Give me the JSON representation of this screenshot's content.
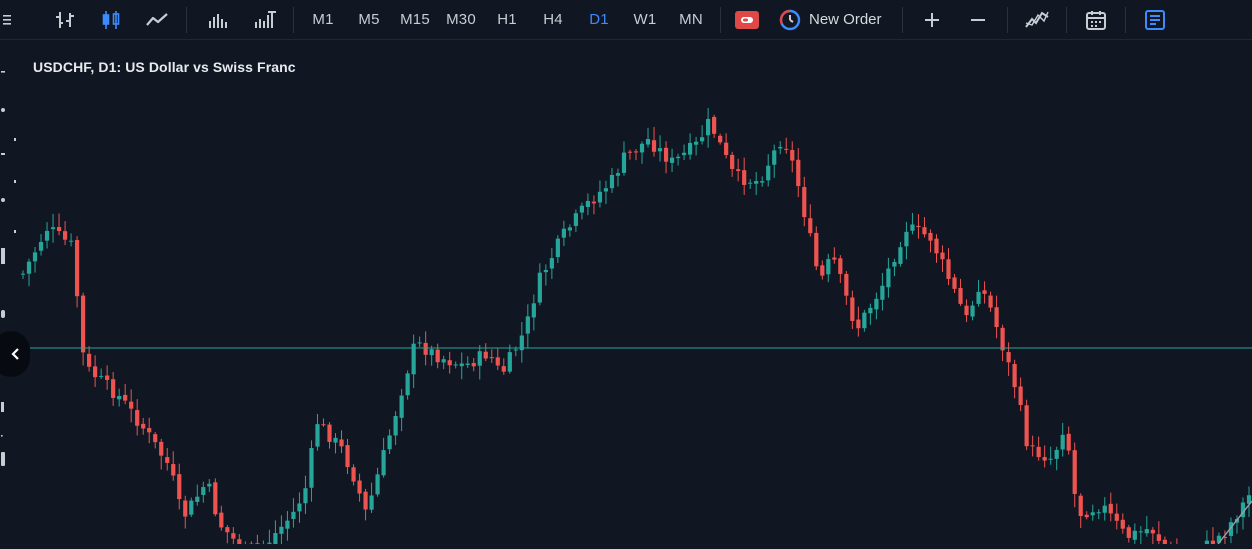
{
  "toolbar": {
    "chart_types": [
      {
        "name": "bar-chart-icon"
      },
      {
        "name": "candlestick-chart-icon",
        "active": true
      },
      {
        "name": "line-chart-icon"
      }
    ],
    "volume_icons": [
      "tick-volume-icon",
      "real-volume-icon"
    ],
    "timeframes": [
      {
        "label": "M1",
        "active": false
      },
      {
        "label": "M5",
        "active": false
      },
      {
        "label": "M15",
        "active": false
      },
      {
        "label": "M30",
        "active": false
      },
      {
        "label": "H1",
        "active": false
      },
      {
        "label": "H4",
        "active": false
      },
      {
        "label": "D1",
        "active": true
      },
      {
        "label": "W1",
        "active": false
      },
      {
        "label": "MN",
        "active": false
      }
    ],
    "new_order_label": "New Order",
    "colors": {
      "active": "#3d8bfd",
      "trading_button": "#e04848",
      "text": "#c9ccd3"
    }
  },
  "chart": {
    "title": "USDCHF, D1: US Dollar vs Swiss Franc",
    "colors": {
      "background": "#101722",
      "bull": "#26a69a",
      "bear": "#ef5350",
      "price_line": "#26a69a"
    }
  },
  "chart_data": {
    "type": "candlestick",
    "symbol": "USDCHF",
    "timeframe": "D1",
    "title": "USDCHF, D1: US Dollar vs Swiss Franc",
    "grid": false,
    "current_price_line": true,
    "trend_path": [
      [
        0.0,
        0.6
      ],
      [
        0.02,
        0.7
      ],
      [
        0.04,
        0.66
      ],
      [
        0.05,
        0.4
      ],
      [
        0.08,
        0.33
      ],
      [
        0.1,
        0.26
      ],
      [
        0.12,
        0.18
      ],
      [
        0.13,
        0.07
      ],
      [
        0.15,
        0.15
      ],
      [
        0.16,
        0.06
      ],
      [
        0.18,
        0.0
      ],
      [
        0.2,
        0.02
      ],
      [
        0.22,
        0.08
      ],
      [
        0.23,
        0.13
      ],
      [
        0.24,
        0.28
      ],
      [
        0.26,
        0.22
      ],
      [
        0.27,
        0.16
      ],
      [
        0.28,
        0.08
      ],
      [
        0.3,
        0.26
      ],
      [
        0.31,
        0.36
      ],
      [
        0.32,
        0.45
      ],
      [
        0.34,
        0.42
      ],
      [
        0.36,
        0.4
      ],
      [
        0.38,
        0.43
      ],
      [
        0.39,
        0.38
      ],
      [
        0.41,
        0.48
      ],
      [
        0.42,
        0.58
      ],
      [
        0.44,
        0.68
      ],
      [
        0.46,
        0.75
      ],
      [
        0.48,
        0.8
      ],
      [
        0.49,
        0.85
      ],
      [
        0.51,
        0.89
      ],
      [
        0.53,
        0.84
      ],
      [
        0.55,
        0.88
      ],
      [
        0.56,
        0.93
      ],
      [
        0.58,
        0.81
      ],
      [
        0.6,
        0.8
      ],
      [
        0.62,
        0.9
      ],
      [
        0.63,
        0.82
      ],
      [
        0.65,
        0.58
      ],
      [
        0.66,
        0.64
      ],
      [
        0.68,
        0.48
      ],
      [
        0.7,
        0.57
      ],
      [
        0.72,
        0.7
      ],
      [
        0.74,
        0.68
      ],
      [
        0.75,
        0.62
      ],
      [
        0.77,
        0.5
      ],
      [
        0.78,
        0.58
      ],
      [
        0.79,
        0.52
      ],
      [
        0.81,
        0.35
      ],
      [
        0.82,
        0.22
      ],
      [
        0.84,
        0.2
      ],
      [
        0.85,
        0.28
      ],
      [
        0.86,
        0.08
      ],
      [
        0.88,
        0.1
      ],
      [
        0.9,
        0.03
      ],
      [
        0.92,
        0.05
      ],
      [
        0.94,
        -0.02
      ],
      [
        0.96,
        0.0
      ],
      [
        0.98,
        0.04
      ],
      [
        1.0,
        0.12
      ]
    ]
  }
}
